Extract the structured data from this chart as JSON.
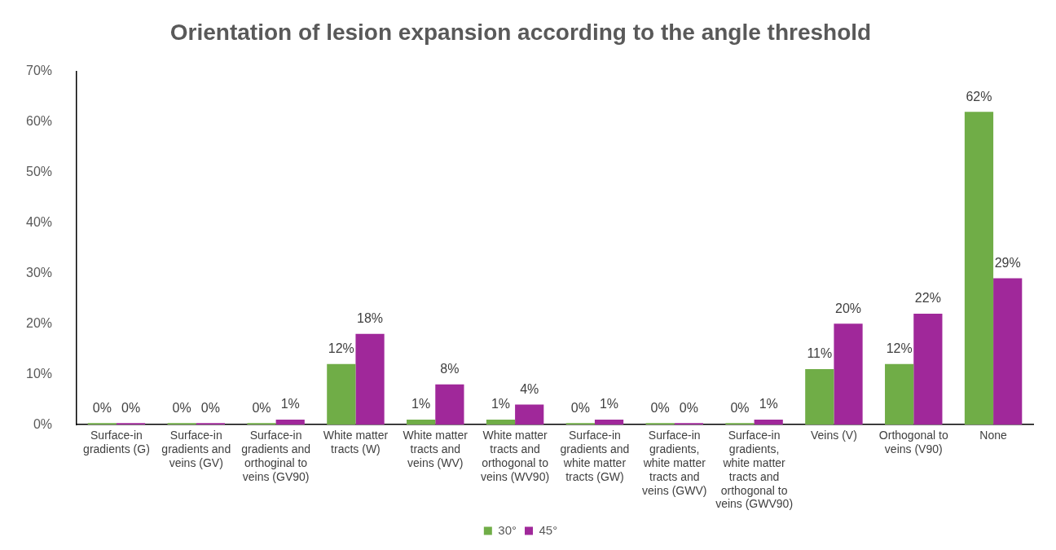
{
  "chart_data": {
    "type": "bar",
    "title": "Orientation of lesion expansion according to the angle threshold",
    "categories": [
      "Surface-in gradients (G)",
      "Surface-in gradients and veins (GV)",
      "Surface-in gradients and orthoginal to veins (GV90)",
      "White matter tracts (W)",
      "White matter tracts and veins (WV)",
      "White matter tracts and orthogonal to veins (WV90)",
      "Surface-in gradients and white matter tracts (GW)",
      "Surface-in gradients, white matter tracts and veins (GWV)",
      "Surface-in gradients, white matter tracts and orthogonal to veins (GWV90)",
      "Veins (V)",
      "Orthogonal to veins (V90)",
      "None"
    ],
    "series": [
      {
        "name": "30°",
        "color": "#70ad47",
        "values": [
          0,
          0,
          0,
          12,
          1,
          1,
          0,
          0,
          0,
          11,
          12,
          62
        ],
        "value_labels": [
          "0%",
          "0%",
          "0%",
          "12%",
          "1%",
          "1%",
          "0%",
          "0%",
          "0%",
          "11%",
          "12%",
          "62%"
        ]
      },
      {
        "name": "45°",
        "color": "#a0289a",
        "values": [
          0,
          0,
          1,
          18,
          8,
          4,
          1,
          0,
          1,
          20,
          22,
          29
        ],
        "value_labels": [
          "0%",
          "0%",
          "1%",
          "18%",
          "8%",
          "4%",
          "1%",
          "0%",
          "1%",
          "20%",
          "22%",
          "29%"
        ]
      }
    ],
    "ylim": [
      0,
      70
    ],
    "yticks": [
      {
        "value": 0,
        "label": "0%"
      },
      {
        "value": 10,
        "label": "10%"
      },
      {
        "value": 20,
        "label": "20%"
      },
      {
        "value": 30,
        "label": "30%"
      },
      {
        "value": 40,
        "label": "40%"
      },
      {
        "value": 50,
        "label": "50%"
      },
      {
        "value": 60,
        "label": "60%"
      },
      {
        "value": 70,
        "label": "70%"
      }
    ],
    "grid": false,
    "legend": "bottom"
  }
}
